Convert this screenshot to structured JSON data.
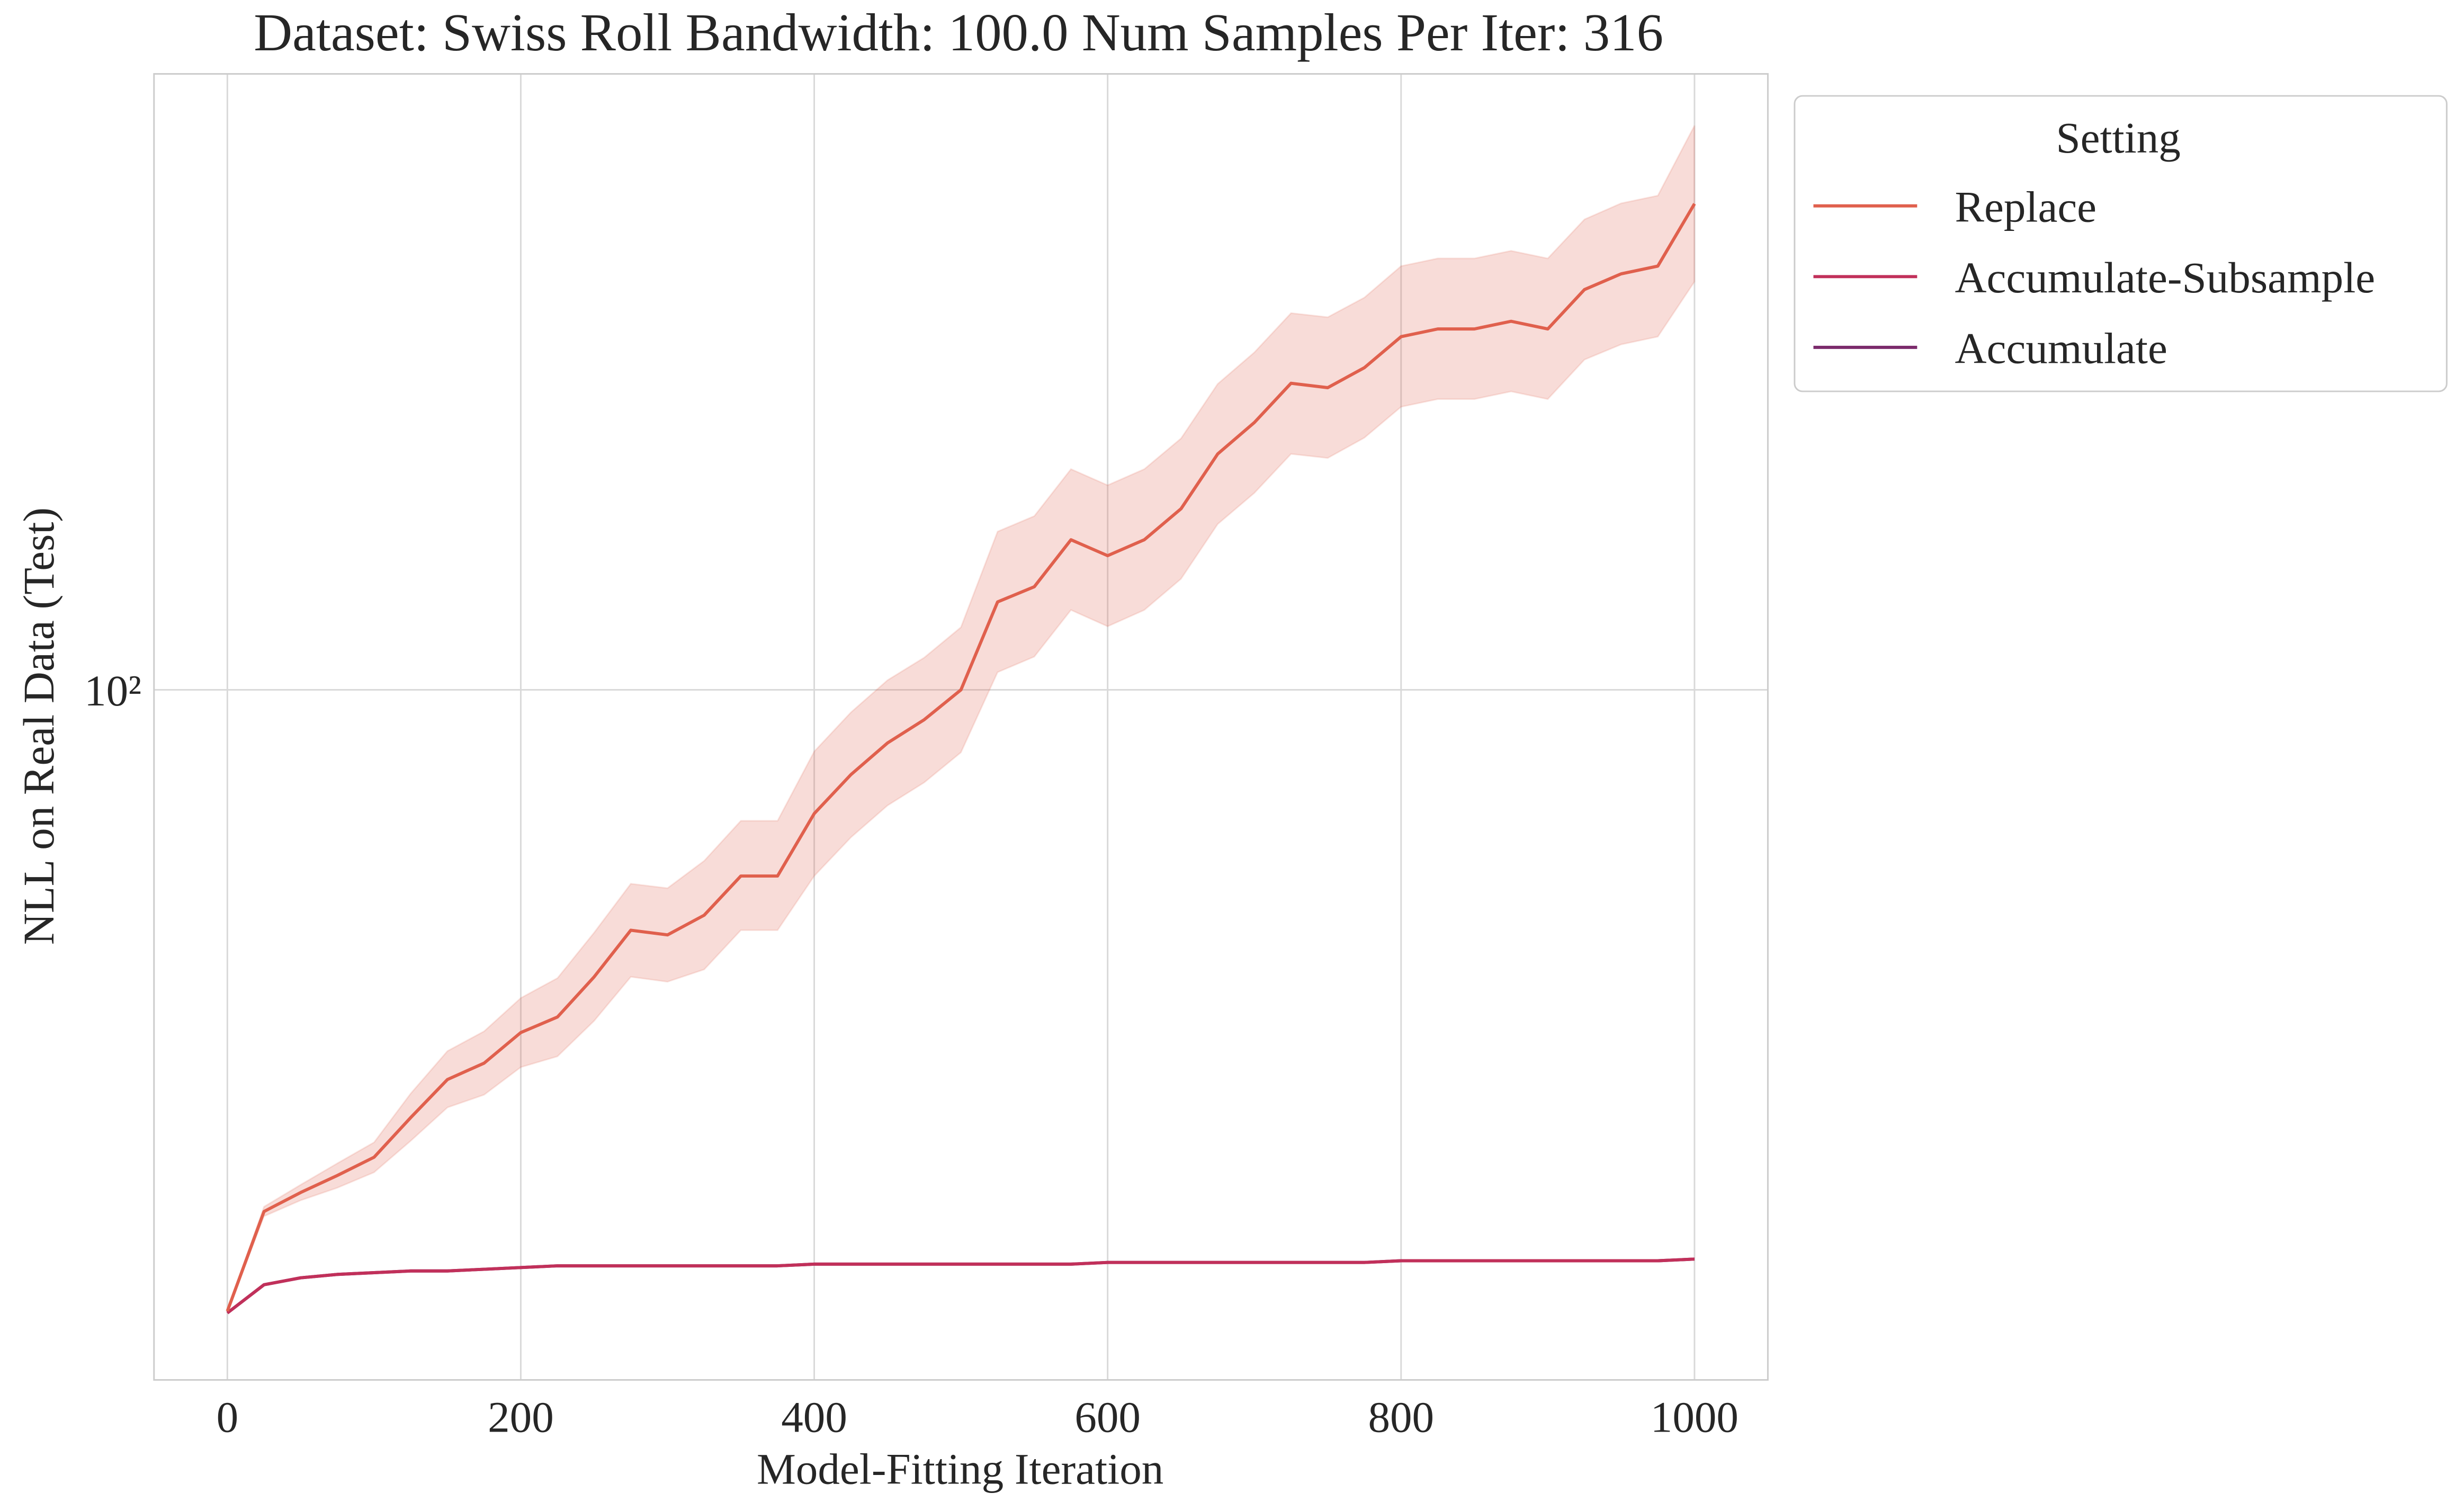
{
  "chart_data": {
    "type": "line",
    "title": "Dataset: Swiss Roll Bandwidth: 100.0 Num Samples Per Iter: 316",
    "x_label": "Model-Fitting Iteration",
    "y_label": "NLL on Real Data (Test)",
    "y_scale": "log",
    "grid": true,
    "legend_title": "Setting",
    "legend_position": "outside-upper-right",
    "xlim": [
      -50,
      1050
    ],
    "xticks": [
      0,
      200,
      400,
      600,
      800,
      1000
    ],
    "ylim": [
      46,
      200
    ],
    "yticks": [
      {
        "value": 100,
        "label": "10²"
      }
    ],
    "x": [
      0,
      25,
      50,
      75,
      100,
      125,
      150,
      175,
      200,
      225,
      250,
      275,
      300,
      325,
      350,
      375,
      400,
      425,
      450,
      475,
      500,
      525,
      550,
      575,
      600,
      625,
      650,
      675,
      700,
      725,
      750,
      775,
      800,
      825,
      850,
      875,
      900,
      925,
      950,
      975,
      1000
    ],
    "series": [
      {
        "name": "Replace",
        "color": "#e0604d",
        "values": [
          49.7,
          55.6,
          56.8,
          57.9,
          59.1,
          61.8,
          64.5,
          65.7,
          68.0,
          69.2,
          72.4,
          76.3,
          75.9,
          77.6,
          81.1,
          81.1,
          87.0,
          90.9,
          94.2,
          96.7,
          100,
          110.4,
          112.3,
          118.4,
          116.3,
          118.4,
          122.6,
          130.4,
          135.1,
          141.2,
          140.5,
          143.7,
          148.8,
          150.1,
          150.1,
          151.4,
          150.1,
          156.9,
          159.7,
          161.1,
          172.8
        ],
        "upper": [
          49.7,
          55.9,
          57.3,
          58.7,
          60.1,
          63.5,
          66.6,
          68.1,
          70.7,
          72.3,
          76.1,
          80.4,
          80.0,
          82.5,
          86.3,
          86.3,
          93.3,
          97.5,
          101.1,
          103.7,
          107.3,
          119.5,
          121.6,
          128.2,
          125.9,
          128.2,
          132.7,
          141.1,
          146.2,
          152.8,
          152.1,
          155.5,
          161.1,
          162.5,
          162.5,
          163.9,
          162.5,
          169.8,
          172.9,
          174.4,
          188.7
        ],
        "lower": [
          49.7,
          55.3,
          56.3,
          57.1,
          58.1,
          60.2,
          62.5,
          63.4,
          65.4,
          66.2,
          68.9,
          72.4,
          72.0,
          73.0,
          76.3,
          76.3,
          81.1,
          84.7,
          87.8,
          90.1,
          93.2,
          102.0,
          103.8,
          109.4,
          107.4,
          109.4,
          113.3,
          120.5,
          124.8,
          130.4,
          129.8,
          132.8,
          137.5,
          138.7,
          138.7,
          139.9,
          138.7,
          145.0,
          147.5,
          148.8,
          158.3
        ]
      },
      {
        "name": "Accumulate-Subsample",
        "color": "#c1305a",
        "values": [
          49.6,
          51.2,
          51.6,
          51.8,
          51.9,
          52.0,
          52.0,
          52.1,
          52.2,
          52.3,
          52.3,
          52.3,
          52.3,
          52.3,
          52.3,
          52.3,
          52.4,
          52.4,
          52.4,
          52.4,
          52.4,
          52.4,
          52.4,
          52.4,
          52.5,
          52.5,
          52.5,
          52.5,
          52.5,
          52.5,
          52.5,
          52.5,
          52.6,
          52.6,
          52.6,
          52.6,
          52.6,
          52.6,
          52.6,
          52.6,
          52.7
        ]
      },
      {
        "name": "Accumulate",
        "color": "#7b2a6b",
        "values": [
          49.6,
          51.2,
          51.6,
          51.8,
          51.9,
          52.0,
          52.0,
          52.1,
          52.2,
          52.3,
          52.3,
          52.3,
          52.3,
          52.3,
          52.3,
          52.3,
          52.4,
          52.4,
          52.4,
          52.4,
          52.4,
          52.4,
          52.4,
          52.4,
          52.5,
          52.5,
          52.5,
          52.5,
          52.5,
          52.5,
          52.5,
          52.5,
          52.6,
          52.6,
          52.6,
          52.6,
          52.6,
          52.6,
          52.6,
          52.6,
          52.7
        ]
      }
    ]
  }
}
